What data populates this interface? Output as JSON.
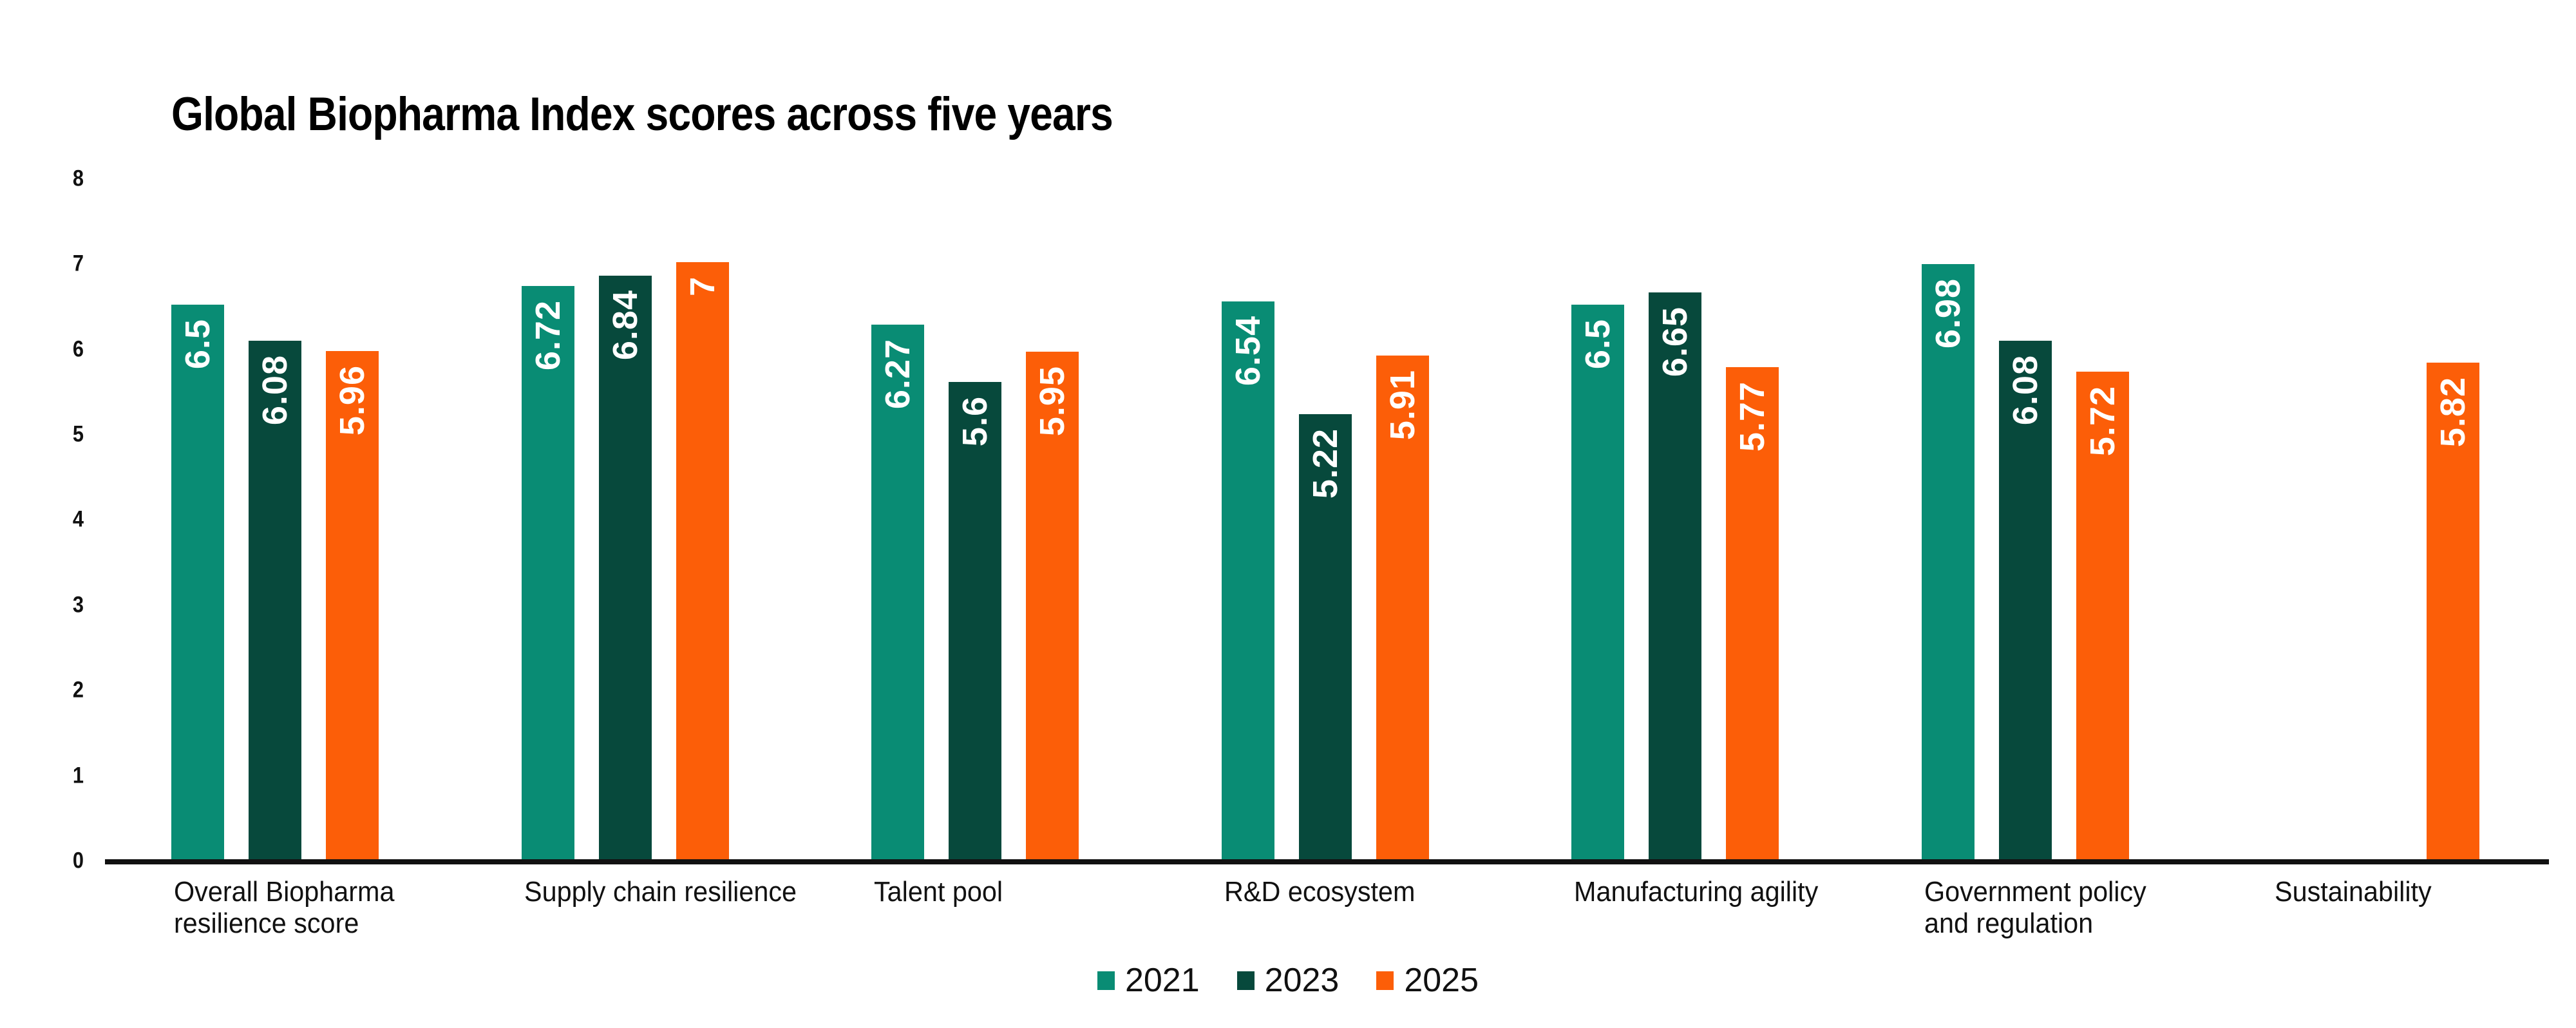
{
  "title": "Global Biopharma Index scores across five years",
  "chart_data": {
    "type": "bar",
    "title": "Global Biopharma Index scores across five years",
    "categories": [
      "Overall Biopharma resilience score",
      "Supply chain resilience",
      "Talent pool",
      "R&D ecosystem",
      "Manufacturing agility",
      "Government policy and regulation",
      "Sustainability"
    ],
    "category_lines": [
      [
        "Overall Biopharma",
        "resilience score"
      ],
      [
        "Supply chain resilience"
      ],
      [
        "Talent pool"
      ],
      [
        "R&D ecosystem"
      ],
      [
        "Manufacturing agility"
      ],
      [
        "Government policy",
        "and regulation"
      ],
      [
        "Sustainability"
      ]
    ],
    "series": [
      {
        "name": "2021",
        "color": "#098c74",
        "values": [
          6.5,
          6.72,
          6.27,
          6.54,
          6.5,
          6.98,
          null
        ]
      },
      {
        "name": "2023",
        "color": "#07493c",
        "values": [
          6.08,
          6.84,
          5.6,
          5.22,
          6.65,
          6.08,
          null
        ]
      },
      {
        "name": "2025",
        "color": "#fc5e08",
        "values": [
          5.96,
          7,
          5.95,
          5.91,
          5.77,
          5.72,
          5.82
        ]
      }
    ],
    "xlabel": "",
    "ylabel": "",
    "ylim": [
      0,
      8
    ],
    "yticks": [
      0,
      1,
      2,
      3,
      4,
      5,
      6,
      7,
      8
    ],
    "grid": false,
    "legend_position": "bottom",
    "bar_label_color": "#ffffff",
    "axis_color": "#111111",
    "background_color": "#ffffff"
  }
}
